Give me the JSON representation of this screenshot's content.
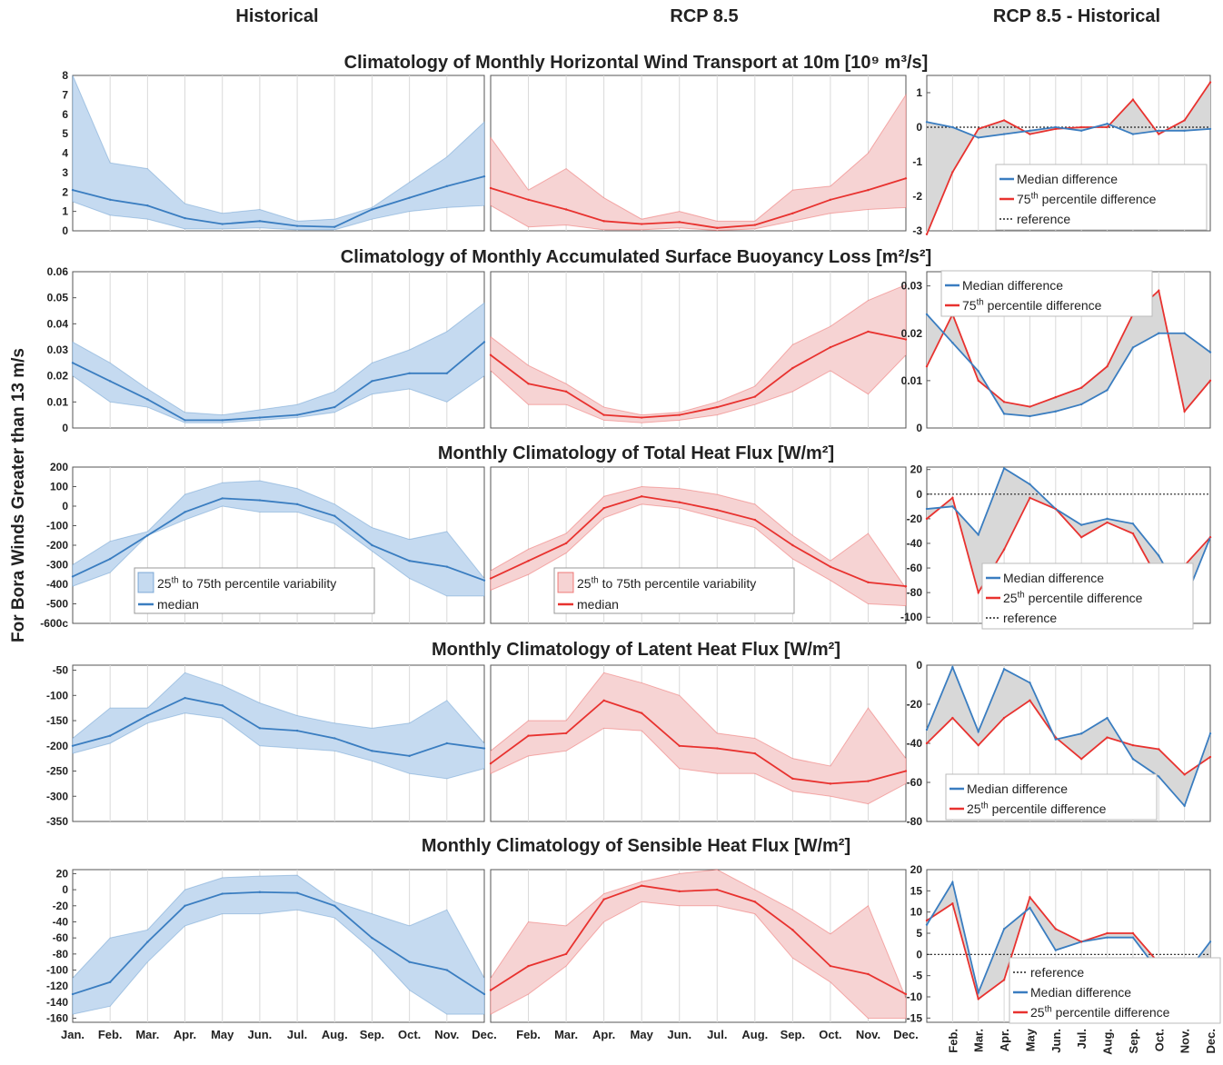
{
  "column_titles": [
    "Historical",
    "RCP 8.5",
    "RCP 8.5 - Historical"
  ],
  "ylabel": "For Bora Winds Greater than 13 m/s",
  "months": [
    "Jan.",
    "Feb.",
    "Mar.",
    "Apr.",
    "May",
    "Jun.",
    "Jul.",
    "Aug.",
    "Sep.",
    "Oct.",
    "Nov.",
    "Dec."
  ],
  "middle_months": [
    "Feb.",
    "Mar.",
    "Apr.",
    "May",
    "Jun.",
    "Jul.",
    "Aug.",
    "Sep.",
    "Oct.",
    "Nov.",
    "Dec."
  ],
  "colors": {
    "historical": "#3a7dc0",
    "historical_fill": "#c5daf0",
    "rcp": "#e8322f",
    "rcp_fill": "#f6d3d3",
    "diff_fill": "#d8d8d8",
    "grid": "#d9d9d9"
  },
  "chart_data": [
    {
      "row": 0,
      "type": "line",
      "title": "Climatology of Monthly Horizontal Wind Transport at 10m [10⁹ m³/s]",
      "historical": {
        "ylim": [
          0,
          8
        ],
        "yticks": [
          0,
          1,
          2,
          3,
          4,
          5,
          6,
          7,
          8
        ],
        "median": [
          2.1,
          1.6,
          1.3,
          0.65,
          0.35,
          0.5,
          0.25,
          0.2,
          1.1,
          1.7,
          2.3,
          2.8
        ],
        "p25": [
          1.5,
          0.8,
          0.6,
          0.1,
          0.1,
          0.15,
          0.05,
          0.05,
          0.6,
          1.0,
          1.2,
          1.3
        ],
        "p75": [
          8.0,
          3.5,
          3.2,
          1.4,
          0.9,
          1.1,
          0.5,
          0.6,
          1.2,
          2.5,
          3.8,
          5.6
        ]
      },
      "rcp": {
        "ylim": [
          0,
          8
        ],
        "median": [
          2.2,
          1.6,
          1.1,
          0.5,
          0.35,
          0.45,
          0.15,
          0.3,
          0.9,
          1.6,
          2.1,
          2.7
        ],
        "p25": [
          1.3,
          0.2,
          0.3,
          0.05,
          0.05,
          0.15,
          0.02,
          0.1,
          0.5,
          0.9,
          1.1,
          1.2
        ],
        "p75": [
          4.8,
          2.1,
          3.2,
          1.7,
          0.6,
          1.0,
          0.5,
          0.5,
          2.1,
          2.3,
          4.0,
          7.0
        ]
      },
      "difference": {
        "ylim": [
          -3,
          1.5
        ],
        "yticks": [
          -3,
          -2,
          -1,
          0,
          1
        ],
        "reference": true,
        "median": [
          0.15,
          0.0,
          -0.3,
          -0.2,
          -0.1,
          0.0,
          -0.1,
          0.1,
          -0.2,
          -0.1,
          -0.1,
          -0.05
        ],
        "other": [
          -3.1,
          -1.3,
          -0.05,
          0.2,
          -0.2,
          -0.05,
          0.0,
          0.0,
          0.8,
          -0.2,
          0.2,
          1.3
        ],
        "legend": [
          "Median difference",
          "75th percentile difference",
          "reference"
        ]
      }
    },
    {
      "row": 1,
      "type": "line",
      "title": "Climatology of Monthly Accumulated Surface Buoyancy Loss [m²/s²]",
      "historical": {
        "ylim": [
          0,
          0.06
        ],
        "yticks": [
          0,
          0.01,
          0.02,
          0.03,
          0.04,
          0.05,
          0.06
        ],
        "median": [
          0.025,
          0.018,
          0.011,
          0.003,
          0.003,
          0.004,
          0.005,
          0.008,
          0.018,
          0.021,
          0.021,
          0.033
        ],
        "p25": [
          0.02,
          0.01,
          0.008,
          0.002,
          0.002,
          0.003,
          0.004,
          0.006,
          0.013,
          0.015,
          0.01,
          0.02
        ],
        "p75": [
          0.033,
          0.025,
          0.015,
          0.006,
          0.005,
          0.007,
          0.009,
          0.014,
          0.025,
          0.03,
          0.037,
          0.048
        ]
      },
      "rcp": {
        "ylim": [
          0,
          0.06
        ],
        "median": [
          0.028,
          0.017,
          0.014,
          0.005,
          0.004,
          0.005,
          0.008,
          0.012,
          0.023,
          0.031,
          0.037,
          0.034
        ],
        "p25": [
          0.022,
          0.009,
          0.009,
          0.003,
          0.002,
          0.003,
          0.005,
          0.009,
          0.014,
          0.022,
          0.013,
          0.028
        ],
        "p75": [
          0.035,
          0.024,
          0.017,
          0.008,
          0.005,
          0.006,
          0.01,
          0.016,
          0.032,
          0.039,
          0.049,
          0.055
        ]
      },
      "difference": {
        "ylim": [
          0,
          0.033
        ],
        "yticks": [
          0,
          0.01,
          0.02,
          0.03
        ],
        "reference": false,
        "median": [
          0.024,
          0.018,
          0.012,
          0.003,
          0.0025,
          0.0035,
          0.005,
          0.008,
          0.017,
          0.02,
          0.02,
          0.016
        ],
        "other": [
          0.013,
          0.024,
          0.01,
          0.0055,
          0.0045,
          0.0065,
          0.0085,
          0.013,
          0.024,
          0.029,
          0.0035,
          0.01
        ],
        "legend": [
          "Median difference",
          "75th percentile difference"
        ]
      }
    },
    {
      "row": 2,
      "type": "line",
      "title": "Monthly Climatology of Total Heat Flux  [W/m²]",
      "historical": {
        "ylim": [
          -600,
          200
        ],
        "yticks": [
          -600,
          -500,
          -400,
          -300,
          -200,
          -100,
          0,
          100,
          200
        ],
        "median": [
          -360,
          -270,
          -150,
          -30,
          40,
          30,
          10,
          -50,
          -200,
          -280,
          -310,
          -380
        ],
        "p25": [
          -410,
          -340,
          -150,
          -70,
          0,
          -30,
          -30,
          -90,
          -230,
          -370,
          -460,
          -460
        ],
        "p75": [
          -300,
          -180,
          -130,
          60,
          120,
          130,
          90,
          10,
          -110,
          -170,
          -130,
          -370
        ],
        "legend": [
          "25th to 75th percentile variability",
          "median"
        ]
      },
      "rcp": {
        "ylim": [
          -600,
          200
        ],
        "median": [
          -370,
          -280,
          -190,
          -10,
          50,
          20,
          -20,
          -70,
          -200,
          -310,
          -390,
          -410
        ],
        "p25": [
          -430,
          -350,
          -240,
          -60,
          10,
          -10,
          -60,
          -110,
          -270,
          -380,
          -500,
          -510
        ],
        "p75": [
          -330,
          -220,
          -140,
          50,
          100,
          90,
          60,
          10,
          -150,
          -280,
          -140,
          -420
        ],
        "legend": [
          "25th to 75th percentile variability",
          "median"
        ]
      },
      "difference": {
        "ylim": [
          -105,
          22
        ],
        "yticks": [
          -100,
          -80,
          -60,
          -40,
          -20,
          0,
          20
        ],
        "reference": true,
        "median": [
          -12,
          -10,
          -33,
          21,
          8,
          -12,
          -25,
          -20,
          -24,
          -50,
          -87,
          -35
        ],
        "other": [
          -20,
          -3,
          -80,
          -45,
          -3,
          -12,
          -35,
          -23,
          -32,
          -70,
          -58,
          -35
        ],
        "legend": [
          "Median difference",
          "25th percentile difference",
          "reference"
        ]
      }
    },
    {
      "row": 3,
      "type": "line",
      "title": "Monthly Climatology of Latent Heat Flux  [W/m²]",
      "historical": {
        "ylim": [
          -350,
          -40
        ],
        "yticks": [
          -350,
          -300,
          -250,
          -200,
          -150,
          -100,
          -50
        ],
        "median": [
          -200,
          -180,
          -140,
          -105,
          -120,
          -165,
          -170,
          -185,
          -210,
          -220,
          -195,
          -205
        ],
        "p25": [
          -215,
          -195,
          -155,
          -135,
          -145,
          -200,
          -205,
          -210,
          -230,
          -255,
          -265,
          -245
        ],
        "p75": [
          -185,
          -125,
          -125,
          -55,
          -80,
          -115,
          -140,
          -155,
          -165,
          -155,
          -110,
          -195
        ]
      },
      "rcp": {
        "ylim": [
          -350,
          -40
        ],
        "median": [
          -235,
          -180,
          -175,
          -110,
          -135,
          -200,
          -205,
          -215,
          -265,
          -275,
          -270,
          -250
        ],
        "p25": [
          -255,
          -220,
          -210,
          -165,
          -170,
          -245,
          -255,
          -255,
          -290,
          -300,
          -315,
          -275
        ],
        "p75": [
          -210,
          -150,
          -150,
          -55,
          -75,
          -100,
          -175,
          -185,
          -225,
          -240,
          -125,
          -225
        ]
      },
      "difference": {
        "ylim": [
          -80,
          0
        ],
        "yticks": [
          -80,
          -60,
          -40,
          -20,
          0
        ],
        "reference": false,
        "median": [
          -33,
          -1,
          -34,
          -2,
          -9,
          -38,
          -35,
          -27,
          -48,
          -57,
          -72,
          -35
        ],
        "other": [
          -40,
          -27,
          -41,
          -27,
          -18,
          -37,
          -48,
          -37,
          -41,
          -43,
          -56,
          -47
        ],
        "legend": [
          "Median difference",
          "25th percentile difference"
        ]
      }
    },
    {
      "row": 4,
      "type": "line",
      "title": "Monthly Climatology of Sensible Heat Flux  [W/m²]",
      "historical": {
        "ylim": [
          -165,
          25
        ],
        "yticks": [
          -160,
          -140,
          -120,
          -100,
          -80,
          -60,
          -40,
          -20,
          0,
          20
        ],
        "median": [
          -130,
          -115,
          -65,
          -20,
          -5,
          -3,
          -4,
          -20,
          -60,
          -90,
          -100,
          -130
        ],
        "p25": [
          -155,
          -145,
          -90,
          -45,
          -30,
          -30,
          -25,
          -35,
          -75,
          -125,
          -155,
          -155
        ],
        "p75": [
          -110,
          -60,
          -50,
          0,
          15,
          17,
          18,
          -15,
          -30,
          -45,
          -25,
          -110
        ]
      },
      "rcp": {
        "ylim": [
          -165,
          25
        ],
        "median": [
          -125,
          -95,
          -80,
          -12,
          5,
          -2,
          0,
          -15,
          -50,
          -95,
          -105,
          -130
        ],
        "p25": [
          -155,
          -130,
          -95,
          -40,
          -15,
          -20,
          -20,
          -30,
          -85,
          -115,
          -160,
          -160
        ],
        "p75": [
          -110,
          -40,
          -45,
          -5,
          10,
          20,
          25,
          0,
          -25,
          -55,
          -20,
          -135
        ]
      },
      "difference": {
        "ylim": [
          -16,
          20
        ],
        "yticks": [
          -15,
          -10,
          -5,
          0,
          5,
          10,
          15,
          20
        ],
        "reference": true,
        "median": [
          7,
          17,
          -9,
          6,
          11,
          1,
          3,
          4,
          4,
          -4,
          -5,
          3
        ],
        "other": [
          8,
          12,
          -10.5,
          -6,
          13.5,
          6,
          3,
          5,
          5,
          -2,
          -4,
          -5
        ],
        "legend": [
          "reference",
          "Median difference",
          "25th percentile difference"
        ]
      }
    }
  ]
}
